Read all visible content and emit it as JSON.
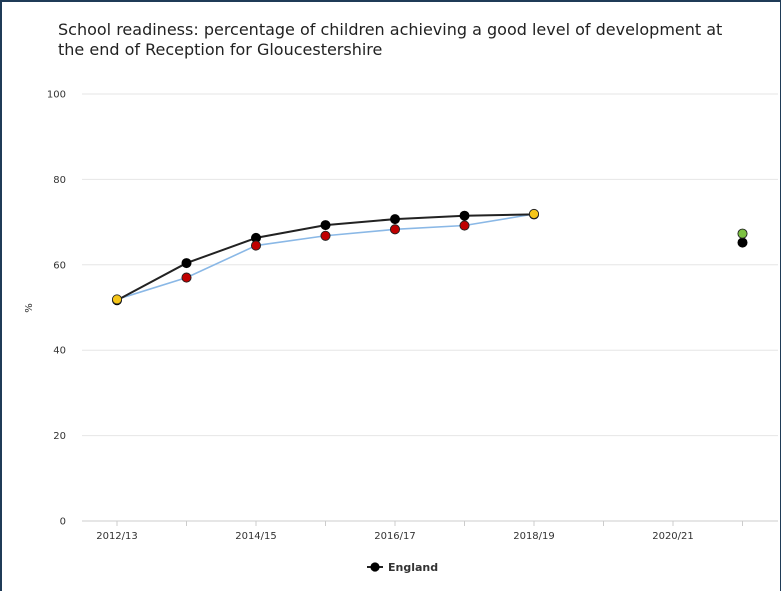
{
  "chart_data": {
    "type": "line",
    "title": "School readiness: percentage of children achieving a good level of development at the end of Reception for Gloucestershire",
    "ylabel": "%",
    "xlabel": "",
    "ylim": [
      0,
      100
    ],
    "yticks": [
      0,
      20,
      40,
      60,
      80,
      100
    ],
    "categories": [
      "2012/13",
      "2013/14",
      "2014/15",
      "2015/16",
      "2016/17",
      "2017/18",
      "2018/19",
      "2019/20",
      "2020/21",
      "2021/22"
    ],
    "xtick_labels": [
      "2012/13",
      "",
      "2014/15",
      "",
      "2016/17",
      "",
      "2018/19",
      "",
      "2020/21",
      ""
    ],
    "grid": true,
    "legend_position": "bottom",
    "series": [
      {
        "name": "England",
        "color": "#000000",
        "line_color": "#222222",
        "values": [
          51.7,
          60.4,
          66.3,
          69.3,
          70.7,
          71.5,
          71.8,
          null,
          null,
          65.2
        ]
      },
      {
        "name": "",
        "line_color": "#8ab8e6",
        "values": [
          51.9,
          57.0,
          64.5,
          66.8,
          68.3,
          69.2,
          71.9,
          null,
          null,
          67.3
        ],
        "point_colors": [
          "#f5c518",
          "#c00000",
          "#c00000",
          "#c00000",
          "#c00000",
          "#c00000",
          "#f5c518",
          null,
          null,
          "#7dc242"
        ]
      }
    ]
  }
}
